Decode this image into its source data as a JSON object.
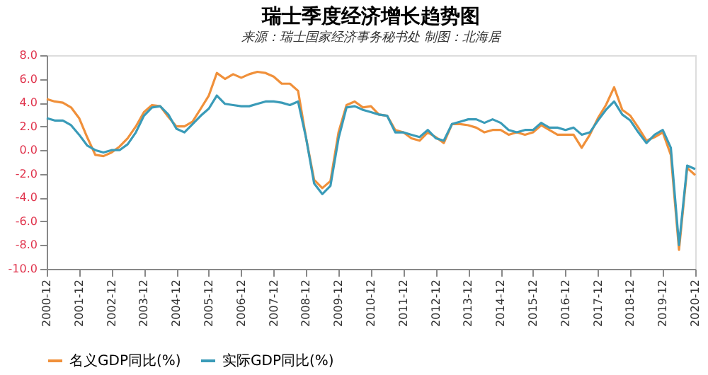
{
  "chart_data": {
    "type": "line",
    "title": "瑞士季度经济增长趋势图",
    "subtitle": "来源：瑞士国家经济事务秘书处  制图：北海居",
    "x": [
      "2000-12",
      "2001-03",
      "2001-06",
      "2001-09",
      "2001-12",
      "2002-03",
      "2002-06",
      "2002-09",
      "2002-12",
      "2003-03",
      "2003-06",
      "2003-09",
      "2003-12",
      "2004-03",
      "2004-06",
      "2004-09",
      "2004-12",
      "2005-03",
      "2005-06",
      "2005-09",
      "2005-12",
      "2006-03",
      "2006-06",
      "2006-09",
      "2006-12",
      "2007-03",
      "2007-06",
      "2007-09",
      "2007-12",
      "2008-03",
      "2008-06",
      "2008-09",
      "2008-12",
      "2009-03",
      "2009-06",
      "2009-09",
      "2009-12",
      "2010-03",
      "2010-06",
      "2010-09",
      "2010-12",
      "2011-03",
      "2011-06",
      "2011-09",
      "2011-12",
      "2012-03",
      "2012-06",
      "2012-09",
      "2012-12",
      "2013-03",
      "2013-06",
      "2013-09",
      "2013-12",
      "2014-03",
      "2014-06",
      "2014-09",
      "2014-12",
      "2015-03",
      "2015-06",
      "2015-09",
      "2015-12",
      "2016-03",
      "2016-06",
      "2016-09",
      "2016-12",
      "2017-03",
      "2017-06",
      "2017-09",
      "2017-12",
      "2018-03",
      "2018-06",
      "2018-09",
      "2018-12",
      "2019-03",
      "2019-06",
      "2019-09",
      "2019-12",
      "2020-03",
      "2020-06",
      "2020-09",
      "2020-12"
    ],
    "series": [
      {
        "name": "名义GDP同比(%)",
        "color": "#f0903a",
        "values": [
          4.3,
          4.1,
          4.0,
          3.6,
          2.7,
          1.1,
          -0.4,
          -0.5,
          -0.2,
          0.3,
          1.0,
          2.0,
          3.2,
          3.8,
          3.7,
          2.8,
          2.0,
          2.0,
          2.4,
          3.5,
          4.6,
          6.5,
          6.0,
          6.4,
          6.1,
          6.4,
          6.6,
          6.5,
          6.2,
          5.6,
          5.6,
          5.0,
          1.0,
          -2.5,
          -3.2,
          -2.6,
          1.5,
          3.8,
          4.1,
          3.6,
          3.7,
          3.0,
          2.9,
          1.7,
          1.5,
          1.0,
          0.8,
          1.5,
          1.1,
          0.6,
          2.2,
          2.2,
          2.1,
          1.9,
          1.5,
          1.7,
          1.7,
          1.3,
          1.5,
          1.3,
          1.5,
          2.1,
          1.7,
          1.3,
          1.3,
          1.3,
          0.2,
          1.3,
          2.7,
          3.8,
          5.3,
          3.4,
          2.9,
          1.9,
          0.8,
          1.1,
          1.5,
          -0.4,
          -8.4,
          -1.5,
          -2.1
        ]
      },
      {
        "name": "实际GDP同比(%)",
        "color": "#3a9bb8",
        "values": [
          2.7,
          2.5,
          2.5,
          2.1,
          1.3,
          0.4,
          0.0,
          -0.2,
          0.0,
          0.0,
          0.5,
          1.5,
          2.9,
          3.6,
          3.7,
          3.0,
          1.8,
          1.5,
          2.2,
          2.9,
          3.5,
          4.6,
          3.9,
          3.8,
          3.7,
          3.7,
          3.9,
          4.1,
          4.1,
          4.0,
          3.8,
          4.1,
          1.0,
          -2.8,
          -3.7,
          -3.0,
          1.0,
          3.6,
          3.7,
          3.4,
          3.2,
          3.0,
          2.9,
          1.5,
          1.5,
          1.3,
          1.1,
          1.7,
          1.0,
          0.8,
          2.2,
          2.4,
          2.6,
          2.6,
          2.3,
          2.6,
          2.3,
          1.7,
          1.5,
          1.7,
          1.7,
          2.3,
          1.9,
          1.9,
          1.7,
          1.9,
          1.3,
          1.5,
          2.5,
          3.4,
          4.1,
          3.0,
          2.5,
          1.5,
          0.6,
          1.3,
          1.7,
          0.2,
          -8.0,
          -1.3,
          -1.6
        ]
      }
    ],
    "xlim": [
      "2000-12",
      "2020-12"
    ],
    "xticks": [
      "2000-12",
      "2001-12",
      "2002-12",
      "2003-12",
      "2004-12",
      "2005-12",
      "2006-12",
      "2007-12",
      "2008-12",
      "2009-12",
      "2010-12",
      "2011-12",
      "2012-12",
      "2013-12",
      "2014-12",
      "2015-12",
      "2016-12",
      "2017-12",
      "2018-12",
      "2019-12",
      "2020-12"
    ],
    "ylim": [
      -10,
      8
    ],
    "yticks": [
      {
        "value": 8,
        "label": "8.0"
      },
      {
        "value": 6,
        "label": "6.0"
      },
      {
        "value": 4,
        "label": "4.0"
      },
      {
        "value": 2,
        "label": "2.0"
      },
      {
        "value": 0,
        "label": "0.0"
      },
      {
        "value": -2,
        "label": "-2.0"
      },
      {
        "value": -4,
        "label": "-4.0"
      },
      {
        "value": -6,
        "label": "-6.0"
      },
      {
        "value": -8,
        "label": "-8.0"
      },
      {
        "value": -10,
        "label": "-10.0"
      }
    ],
    "grid": false,
    "legend": "bottom",
    "marker": "none",
    "line_style": "solid"
  }
}
